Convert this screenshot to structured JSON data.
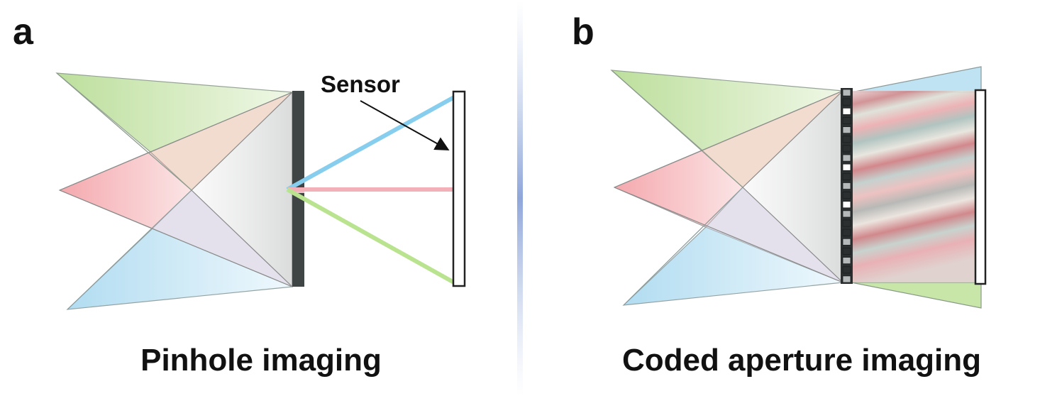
{
  "panel_a": {
    "letter": "a",
    "caption": "Pinhole imaging",
    "sensor_label": "Sensor"
  },
  "panel_b": {
    "letter": "b",
    "caption": "Coded aperture imaging"
  },
  "colors": {
    "green": "#bfe0a0",
    "red": "#f3a9ad",
    "blue": "#b9e0f2",
    "mask": "#404646",
    "ray_blue": "#86cdee",
    "ray_pink": "#f3b0b8",
    "ray_green": "#b9e38f",
    "divider": "#a9b8dd"
  },
  "aperture_pattern": [
    "light",
    "dark",
    "white",
    "dark",
    "light",
    "dark",
    "dark",
    "light",
    "white",
    "dark",
    "light",
    "dark",
    "white",
    "light",
    "dark",
    "dark",
    "light",
    "dark",
    "light",
    "dark",
    "light"
  ]
}
